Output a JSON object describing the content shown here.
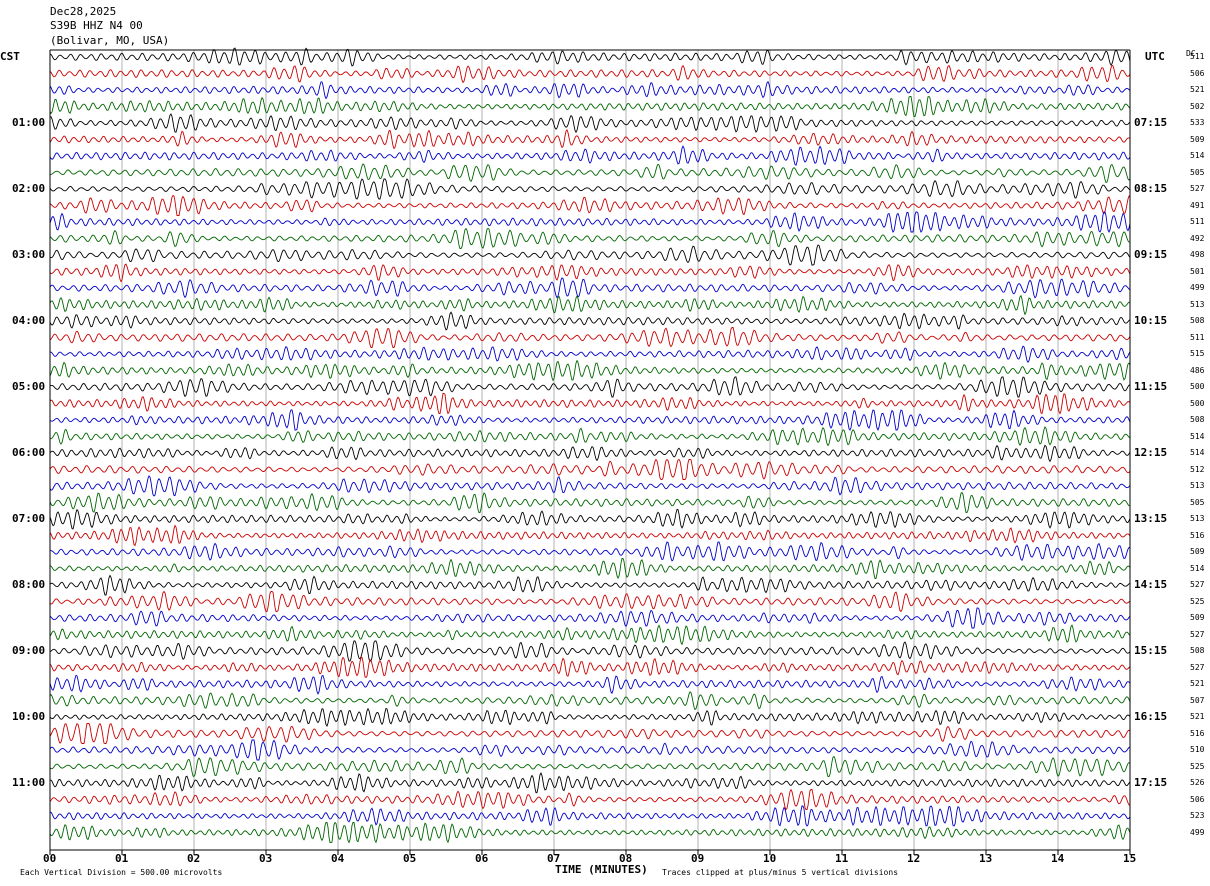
{
  "header": {
    "date": "Dec28,2025",
    "station": "S39B HHZ N4 00",
    "location": "(Bolivar, MO, USA)"
  },
  "left_axis_label": "CST",
  "right_axis_label": "UTC",
  "dc_label": "DC",
  "footer": {
    "scale_note": "Each Vertical Division =  500.00 microvolts",
    "xlabel": "TIME (MINUTES)",
    "clip_note": "Traces clipped at plus/minus 5 vertical divisions"
  },
  "colors": {
    "trace_cycle": [
      "#000000",
      "#cc0000",
      "#0000cc",
      "#006600"
    ],
    "grid": "#808080",
    "frame": "#000000"
  },
  "chart_data": {
    "type": "line",
    "subtype": "helicorder",
    "x_unit": "minutes",
    "xlim": [
      0,
      15
    ],
    "x_ticks": [
      "00",
      "01",
      "02",
      "03",
      "04",
      "05",
      "06",
      "07",
      "08",
      "09",
      "10",
      "11",
      "12",
      "13",
      "14",
      "15"
    ],
    "rows_per_hour": 4,
    "row_count": 48,
    "left_hour_labels": [
      {
        "row": 4,
        "label": "01:00"
      },
      {
        "row": 8,
        "label": "02:00"
      },
      {
        "row": 12,
        "label": "03:00"
      },
      {
        "row": 16,
        "label": "04:00"
      },
      {
        "row": 20,
        "label": "05:00"
      },
      {
        "row": 24,
        "label": "06:00"
      },
      {
        "row": 28,
        "label": "07:00"
      },
      {
        "row": 32,
        "label": "08:00"
      },
      {
        "row": 36,
        "label": "09:00"
      },
      {
        "row": 40,
        "label": "10:00"
      },
      {
        "row": 44,
        "label": "11:00"
      }
    ],
    "right_hour_labels": [
      {
        "row": 4,
        "label": "07:15"
      },
      {
        "row": 8,
        "label": "08:15"
      },
      {
        "row": 12,
        "label": "09:15"
      },
      {
        "row": 16,
        "label": "10:15"
      },
      {
        "row": 20,
        "label": "11:15"
      },
      {
        "row": 24,
        "label": "12:15"
      },
      {
        "row": 28,
        "label": "13:15"
      },
      {
        "row": 32,
        "label": "14:15"
      },
      {
        "row": 36,
        "label": "15:15"
      },
      {
        "row": 40,
        "label": "16:15"
      },
      {
        "row": 44,
        "label": "17:15"
      }
    ],
    "dc_offsets": [
      "511",
      "506",
      "521",
      "502",
      "533",
      "509",
      "514",
      "505",
      "527",
      "491",
      "511",
      "492",
      "498",
      "501",
      "499",
      "513",
      "508",
      "511",
      "515",
      "486",
      "500",
      "500",
      "508",
      "514",
      "514",
      "512",
      "513",
      "505",
      "513",
      "516",
      "509",
      "514",
      "527",
      "525",
      "509",
      "527",
      "508",
      "527",
      "521",
      "507",
      "521",
      "516",
      "510",
      "525",
      "526",
      "506",
      "523",
      "499"
    ]
  }
}
